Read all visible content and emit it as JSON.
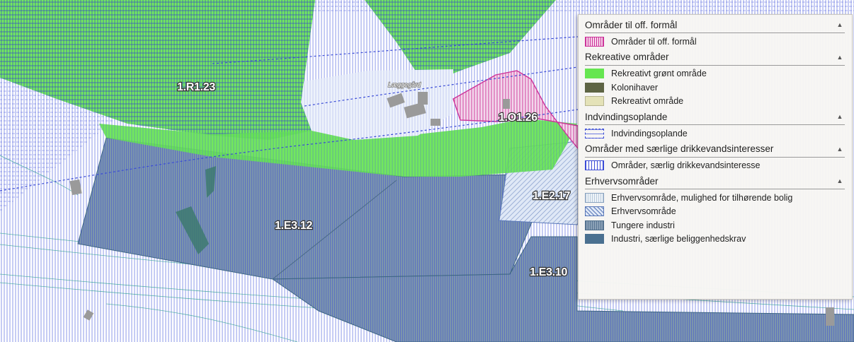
{
  "map": {
    "zones": [
      {
        "code": "1.R1.23",
        "category": "Rekreativt grønt område"
      },
      {
        "code": "1.O1.26",
        "category": "Områder til off. formål"
      },
      {
        "code": "1.E2.17",
        "category": "Erhvervsområde"
      },
      {
        "code": "1.E3.12",
        "category": "Tungere industri"
      },
      {
        "code": "1.E3.10",
        "category": "Tungere industri"
      }
    ],
    "place_name": "Læggegård"
  },
  "legend": {
    "groups": [
      {
        "title": "Områder til off. formål",
        "toggle": "▲",
        "items": [
          {
            "label": "Områder til off. formål",
            "swatch": "public-hatch",
            "color": "#cc3399"
          }
        ]
      },
      {
        "title": "Rekreative områder",
        "toggle": "▲",
        "items": [
          {
            "label": "Rekreativt grønt område",
            "swatch": "solid",
            "color": "#66e650"
          },
          {
            "label": "Kolonihaver",
            "swatch": "solid",
            "color": "#5e6444"
          },
          {
            "label": "Rekreativt område",
            "swatch": "solid",
            "color": "#e4e2b8"
          }
        ]
      },
      {
        "title": "Indvindingsoplande",
        "toggle": "▲",
        "items": [
          {
            "label": "Indvindingsoplande",
            "swatch": "dashed-lines",
            "color": "#3a4bd6"
          }
        ]
      },
      {
        "title": "Områder med særlige drikkevandsinteresser",
        "toggle": "▲",
        "items": [
          {
            "label": "Områder, særlig drikkevandsinteresse",
            "swatch": "vertical-lines",
            "color": "#3a4bd6"
          }
        ]
      },
      {
        "title": "Erhvervsområder",
        "toggle": "▲",
        "items": [
          {
            "label": "Erhvervsområde, mulighed for tilhørende bolig",
            "swatch": "light-dotted",
            "color": "#d8e6ef"
          },
          {
            "label": "Erhvervsområde",
            "swatch": "diagonal",
            "color": "#9fb3d6"
          },
          {
            "label": "Tungere industri",
            "swatch": "dense-dots",
            "color": "#7f97ae"
          },
          {
            "label": "Industri, særlige beliggenhedskrav",
            "swatch": "solid",
            "color": "#4a7090"
          }
        ]
      }
    ]
  }
}
